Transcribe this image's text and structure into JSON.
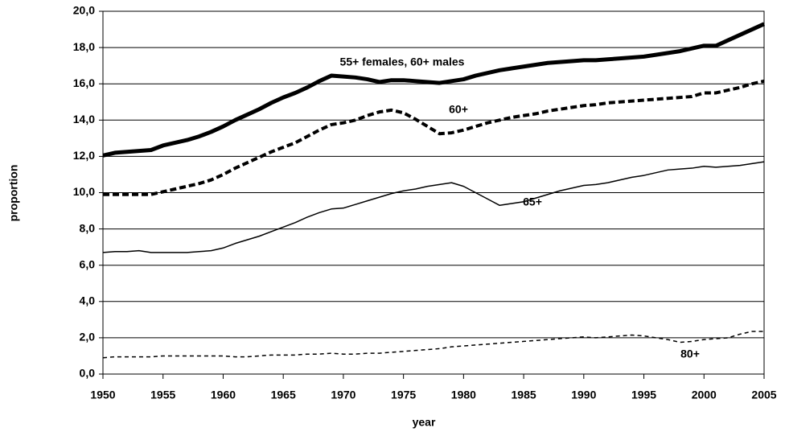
{
  "chart_data": {
    "type": "line",
    "x_label": "year",
    "y_label": "proportion",
    "x": [
      1950,
      1951,
      1952,
      1953,
      1954,
      1955,
      1956,
      1957,
      1958,
      1959,
      1960,
      1961,
      1962,
      1963,
      1964,
      1965,
      1966,
      1967,
      1968,
      1969,
      1970,
      1971,
      1972,
      1973,
      1974,
      1975,
      1976,
      1977,
      1978,
      1979,
      1980,
      1981,
      1982,
      1983,
      1984,
      1985,
      1986,
      1987,
      1988,
      1989,
      1990,
      1991,
      1992,
      1993,
      1994,
      1995,
      1996,
      1997,
      1998,
      1999,
      2000,
      2001,
      2002,
      2003,
      2004,
      2005
    ],
    "series": [
      {
        "name": "55+ females, 60+ males",
        "color": "#000000",
        "values": [
          12.05,
          12.2,
          12.25,
          12.3,
          12.35,
          12.6,
          12.75,
          12.9,
          13.1,
          13.35,
          13.65,
          14.0,
          14.3,
          14.6,
          14.95,
          15.25,
          15.5,
          15.8,
          16.15,
          16.45,
          16.4,
          16.35,
          16.25,
          16.1,
          16.2,
          16.2,
          16.15,
          16.1,
          16.05,
          16.15,
          16.25,
          16.45,
          16.6,
          16.75,
          16.85,
          16.95,
          17.05,
          17.15,
          17.2,
          17.25,
          17.3,
          17.3,
          17.35,
          17.4,
          17.45,
          17.5,
          17.6,
          17.7,
          17.8,
          17.95,
          18.1,
          18.1,
          18.4,
          18.7,
          19.0,
          19.3
        ]
      },
      {
        "name": "60+",
        "color": "#000000",
        "values": [
          9.9,
          9.9,
          9.9,
          9.9,
          9.9,
          10.05,
          10.2,
          10.35,
          10.5,
          10.7,
          11.0,
          11.35,
          11.65,
          11.95,
          12.25,
          12.5,
          12.75,
          13.1,
          13.45,
          13.75,
          13.85,
          14.0,
          14.25,
          14.45,
          14.55,
          14.4,
          14.05,
          13.65,
          13.25,
          13.3,
          13.45,
          13.65,
          13.85,
          14.0,
          14.15,
          14.25,
          14.35,
          14.5,
          14.6,
          14.7,
          14.8,
          14.85,
          14.95,
          15.0,
          15.05,
          15.1,
          15.15,
          15.2,
          15.25,
          15.3,
          15.5,
          15.5,
          15.65,
          15.8,
          16.0,
          16.15
        ]
      },
      {
        "name": "65+",
        "color": "#000000",
        "values": [
          6.7,
          6.75,
          6.75,
          6.8,
          6.7,
          6.7,
          6.7,
          6.7,
          6.75,
          6.8,
          6.95,
          7.2,
          7.4,
          7.6,
          7.85,
          8.1,
          8.35,
          8.65,
          8.9,
          9.1,
          9.15,
          9.35,
          9.55,
          9.75,
          9.95,
          10.1,
          10.2,
          10.35,
          10.45,
          10.55,
          10.35,
          10.0,
          9.65,
          9.3,
          9.4,
          9.5,
          9.7,
          9.9,
          10.1,
          10.25,
          10.4,
          10.45,
          10.55,
          10.7,
          10.85,
          10.95,
          11.1,
          11.25,
          11.3,
          11.35,
          11.45,
          11.4,
          11.45,
          11.5,
          11.6,
          11.7
        ]
      },
      {
        "name": "80+",
        "color": "#000000",
        "values": [
          0.9,
          0.95,
          0.95,
          0.95,
          0.95,
          1.0,
          1.0,
          1.0,
          1.0,
          1.0,
          1.0,
          0.95,
          0.95,
          1.0,
          1.05,
          1.05,
          1.05,
          1.1,
          1.1,
          1.15,
          1.1,
          1.1,
          1.15,
          1.15,
          1.2,
          1.25,
          1.3,
          1.35,
          1.4,
          1.5,
          1.55,
          1.6,
          1.65,
          1.7,
          1.75,
          1.8,
          1.85,
          1.9,
          1.95,
          2.0,
          2.05,
          2.0,
          2.05,
          2.1,
          2.15,
          2.1,
          2.0,
          1.9,
          1.75,
          1.8,
          1.9,
          1.95,
          2.0,
          2.2,
          2.35,
          2.35
        ]
      }
    ],
    "xlim": [
      1950,
      2005
    ],
    "xticks": [
      1950,
      1955,
      1960,
      1965,
      1970,
      1975,
      1980,
      1985,
      1990,
      1995,
      2000,
      2005
    ],
    "ylim": [
      0,
      20
    ],
    "yticks": [
      {
        "value": 0,
        "label": "0,0"
      },
      {
        "value": 2,
        "label": "2,0"
      },
      {
        "value": 4,
        "label": "4,0"
      },
      {
        "value": 6,
        "label": "6,0"
      },
      {
        "value": 8,
        "label": "8,0"
      },
      {
        "value": 10,
        "label": "10,0"
      },
      {
        "value": 12,
        "label": "12,0"
      },
      {
        "value": 14,
        "label": "14,0"
      },
      {
        "value": 16,
        "label": "16,0"
      },
      {
        "value": 18,
        "label": "18,0"
      },
      {
        "value": 20,
        "label": "20,0"
      }
    ],
    "grid": true
  }
}
